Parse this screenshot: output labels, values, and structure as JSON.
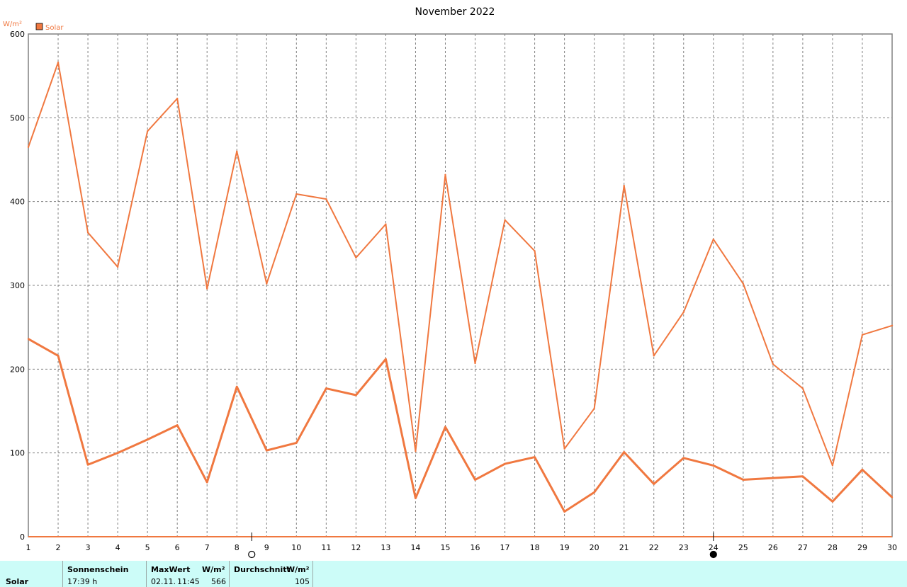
{
  "title": "November 2022",
  "legend": {
    "label": "Solar",
    "color": "#f07840"
  },
  "colors": {
    "series": "#f07840",
    "grid": "#808080",
    "axis": "#808080",
    "stats_bg": "#ccfcf8"
  },
  "chart_data": {
    "type": "line",
    "title": "November 2022",
    "ylabel": "W/m²",
    "xlabel": "",
    "ylim": [
      0,
      600
    ],
    "xlim": [
      1,
      30
    ],
    "yticks": [
      0,
      100,
      200,
      300,
      400,
      500,
      600
    ],
    "x": [
      1,
      2,
      3,
      4,
      5,
      6,
      7,
      8,
      9,
      10,
      11,
      12,
      13,
      14,
      15,
      16,
      17,
      18,
      19,
      20,
      21,
      22,
      23,
      24,
      25,
      26,
      27,
      28,
      29,
      30
    ],
    "series": [
      {
        "role": "daily-maximum",
        "line": "thin",
        "values": [
          465,
          566,
          363,
          322,
          484,
          523,
          296,
          460,
          302,
          409,
          403,
          333,
          373,
          102,
          432,
          207,
          378,
          341,
          105,
          153,
          419,
          216,
          268,
          355,
          302,
          206,
          177,
          85,
          241,
          252
        ]
      },
      {
        "role": "daily-average",
        "line": "thick",
        "values": [
          236,
          216,
          86,
          100,
          116,
          133,
          65,
          179,
          103,
          112,
          177,
          169,
          212,
          46,
          131,
          68,
          87,
          95,
          30,
          53,
          101,
          63,
          94,
          85,
          68,
          70,
          72,
          42,
          80,
          47
        ]
      }
    ],
    "grid": true,
    "legend_position": "top-left",
    "moon_phases": [
      {
        "phase": "full",
        "x": 8.5
      },
      {
        "phase": "new",
        "x": 24
      }
    ]
  },
  "stats": {
    "row_label": "Solar",
    "sunshine_header": "Sonnenschein",
    "sunshine_value": "17:39 h",
    "max_header": "MaxWert",
    "max_unit": "W/m²",
    "max_date": "02.11.",
    "max_time": "11:45",
    "max_value": "566",
    "avg_header": "Durchschnitt",
    "avg_unit": "W/m²",
    "avg_value": "105"
  }
}
